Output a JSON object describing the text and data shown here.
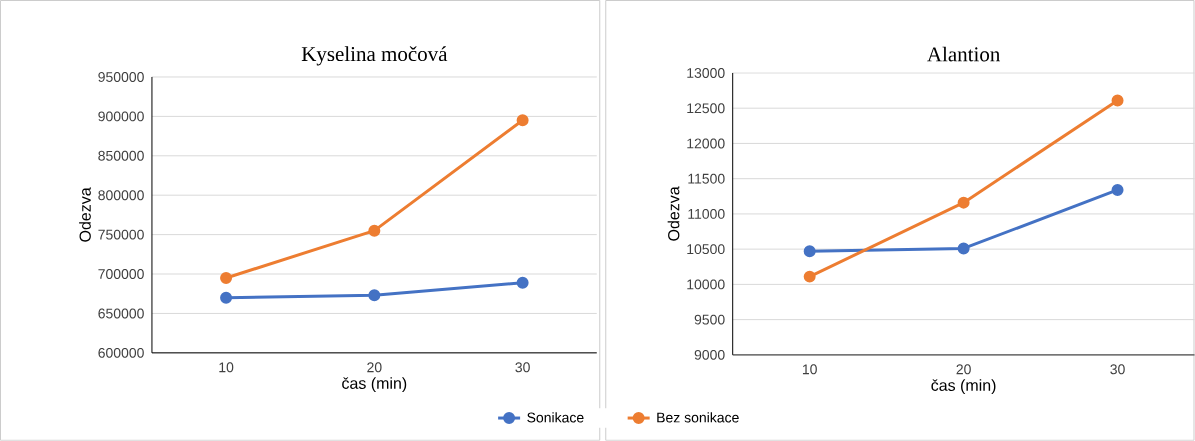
{
  "chart_data": [
    {
      "type": "line",
      "title": "Kyselina močová",
      "xlabel": "čas (min)",
      "ylabel": "Odezva",
      "categories": [
        "10",
        "20",
        "30"
      ],
      "ylim": [
        600000,
        950000
      ],
      "yticks": [
        600000,
        650000,
        700000,
        750000,
        800000,
        850000,
        900000,
        950000
      ],
      "grid": "y",
      "legend": "bottom",
      "marker": "circle",
      "line_style": "solid",
      "series": [
        {
          "name": "Sonikace",
          "color": "#4472c4",
          "values": [
            670000,
            673000,
            689000
          ]
        },
        {
          "name": "Bez sonikace",
          "color": "#ed7d31",
          "values": [
            695000,
            755000,
            895000
          ]
        }
      ]
    },
    {
      "type": "line",
      "title": "Alantion",
      "xlabel": "čas (min)",
      "ylabel": "Odezva",
      "categories": [
        "10",
        "20",
        "30"
      ],
      "ylim": [
        9000,
        13000
      ],
      "yticks": [
        9000,
        9500,
        10000,
        10500,
        11000,
        11500,
        12000,
        12500,
        13000
      ],
      "grid": "y",
      "marker": "circle",
      "line_style": "solid",
      "series": [
        {
          "color": "#4472c4",
          "values": [
            10470,
            10510,
            11340
          ]
        },
        {
          "color": "#ed7d31",
          "values": [
            10110,
            11160,
            12610
          ]
        }
      ]
    }
  ]
}
